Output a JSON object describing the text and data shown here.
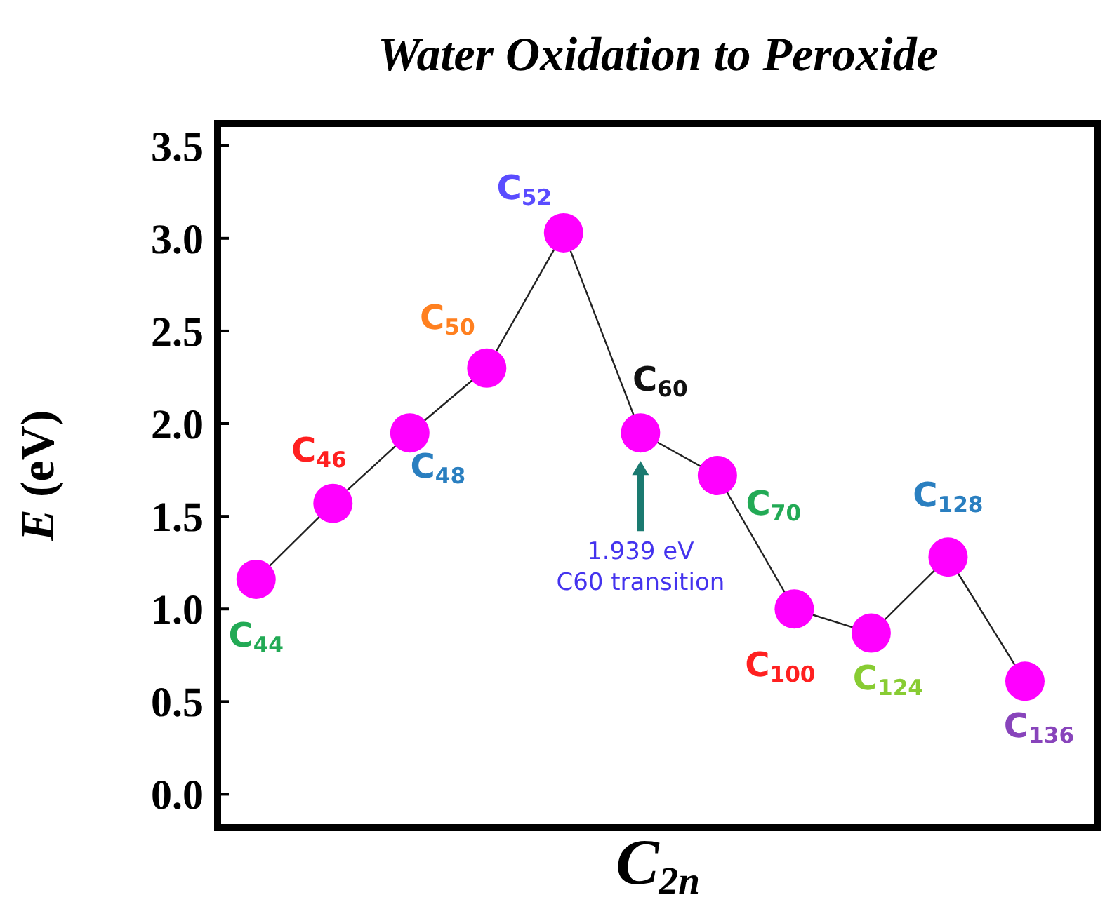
{
  "chart_data": {
    "type": "line",
    "title": "Water Oxidation to Peroxide",
    "xlabel": "C$_{2n}$",
    "ylabel": "E (eV)",
    "categories": [
      null,
      null,
      null,
      null,
      null,
      null,
      null,
      null,
      null,
      null,
      null
    ],
    "series": [
      {
        "color": "#222222",
        "colors": [
          "#ff00ff",
          "#ff00ff",
          "#ff00ff",
          "#ff00ff",
          "#ff00ff",
          "#ff00ff",
          "#ff00ff",
          "#ff00ff",
          "#ff00ff",
          "#ff00ff",
          "#ff00ff"
        ],
        "values": [
          1.16,
          1.57,
          1.95,
          2.3,
          3.03,
          1.95,
          1.72,
          1.0,
          0.87,
          1.28,
          0.61
        ]
      }
    ],
    "marker": "circle",
    "line_style": "solid",
    "tick_labels": "y",
    "grid": false,
    "ylim": [
      -0.18,
      3.62
    ],
    "yticks": [
      {
        "value": 0,
        "label": "0.0"
      },
      {
        "value": 0.5,
        "label": "0.5"
      },
      {
        "value": 1,
        "label": "1.0"
      },
      {
        "value": 1.5,
        "label": "1.5"
      },
      {
        "value": 2,
        "label": "2.0"
      },
      {
        "value": 2.5,
        "label": "2.5"
      },
      {
        "value": 3,
        "label": "3.0"
      },
      {
        "value": 3.5,
        "label": "3.5"
      }
    ],
    "annotations": [
      "C$_{44}$",
      "C$_{46}$",
      "C$_{48}$",
      "C$_{50}$",
      "C$_{52}$",
      "C$_{60}$",
      "C$_{70}$",
      "C$_{100}$",
      "C$_{124}$",
      "C$_{128}$",
      "C$_{136}$",
      "1.939 eV\nC60 transition"
    ]
  }
}
